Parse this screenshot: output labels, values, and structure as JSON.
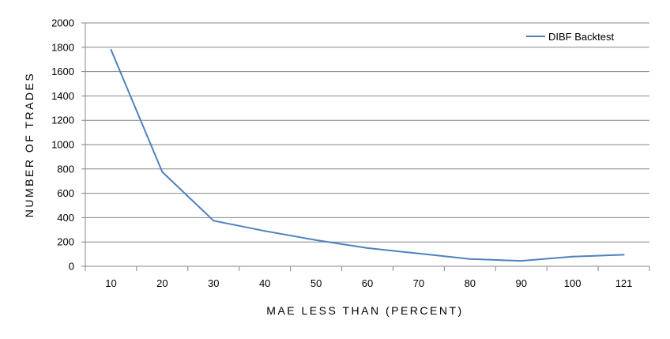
{
  "chart_data": {
    "type": "line",
    "title": "",
    "xlabel": "MAE LESS THAN (PERCENT)",
    "ylabel": "NUMBER OF TRADES",
    "categories": [
      "10",
      "20",
      "30",
      "40",
      "50",
      "60",
      "70",
      "80",
      "90",
      "100",
      "121"
    ],
    "series": [
      {
        "name": "DIBF Backtest",
        "color": "#4f81bd",
        "values": [
          1780,
          775,
          375,
          290,
          215,
          150,
          105,
          60,
          45,
          80,
          95
        ]
      }
    ],
    "ylim": [
      0,
      2000
    ],
    "yticks": [
      0,
      200,
      400,
      600,
      800,
      1000,
      1200,
      1400,
      1600,
      1800,
      2000
    ],
    "grid": true,
    "legend_position": "top-right"
  }
}
